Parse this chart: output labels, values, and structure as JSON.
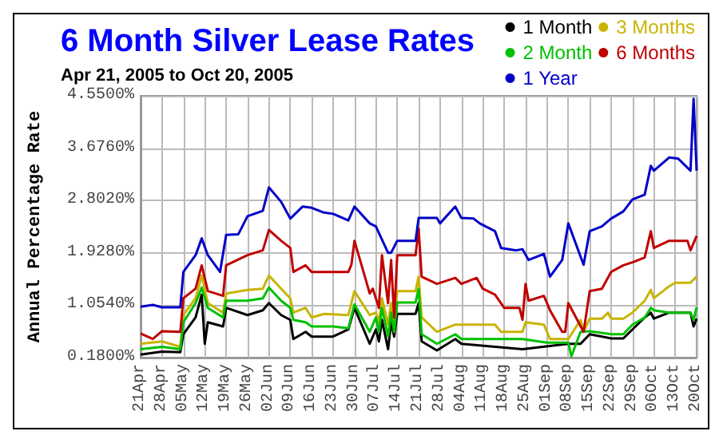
{
  "chart_data": {
    "type": "line",
    "title": "6 Month Silver Lease Rates",
    "subtitle": "Apr 21, 2005 to Oct 20, 2005",
    "ylabel": "Annual Percentage Rate",
    "xlim": [
      "2005-04-21",
      "2005-10-20"
    ],
    "ylim": [
      0.18,
      4.55
    ],
    "yticks": [
      {
        "value": 0.18,
        "label": "0.1800%"
      },
      {
        "value": 1.054,
        "label": "1.0540%"
      },
      {
        "value": 1.928,
        "label": "1.9280%"
      },
      {
        "value": 2.802,
        "label": "2.8020%"
      },
      {
        "value": 3.676,
        "label": "3.6760%"
      },
      {
        "value": 4.55,
        "label": "4.5500%"
      }
    ],
    "xticks": [
      {
        "value": "2005-04-21",
        "label": "21Apr"
      },
      {
        "value": "2005-04-28",
        "label": "28Apr"
      },
      {
        "value": "2005-05-05",
        "label": "05May"
      },
      {
        "value": "2005-05-12",
        "label": "12May"
      },
      {
        "value": "2005-05-19",
        "label": "19May"
      },
      {
        "value": "2005-05-26",
        "label": "26May"
      },
      {
        "value": "2005-06-02",
        "label": "02Jun"
      },
      {
        "value": "2005-06-09",
        "label": "09Jun"
      },
      {
        "value": "2005-06-16",
        "label": "16Jun"
      },
      {
        "value": "2005-06-23",
        "label": "23Jun"
      },
      {
        "value": "2005-06-30",
        "label": "30Jun"
      },
      {
        "value": "2005-07-07",
        "label": "07Jul"
      },
      {
        "value": "2005-07-14",
        "label": "14Jul"
      },
      {
        "value": "2005-07-21",
        "label": "21Jul"
      },
      {
        "value": "2005-07-28",
        "label": "28Jul"
      },
      {
        "value": "2005-08-04",
        "label": "04Aug"
      },
      {
        "value": "2005-08-11",
        "label": "11Aug"
      },
      {
        "value": "2005-08-18",
        "label": "18Aug"
      },
      {
        "value": "2005-08-25",
        "label": "25Aug"
      },
      {
        "value": "2005-09-01",
        "label": "01Sep"
      },
      {
        "value": "2005-09-08",
        "label": "08Sep"
      },
      {
        "value": "2005-09-15",
        "label": "15Sep"
      },
      {
        "value": "2005-09-22",
        "label": "22Sep"
      },
      {
        "value": "2005-09-29",
        "label": "29Sep"
      },
      {
        "value": "2005-10-06",
        "label": "06Oct"
      },
      {
        "value": "2005-10-13",
        "label": "13Oct"
      },
      {
        "value": "2005-10-20",
        "label": "20Oct"
      }
    ],
    "grid": true,
    "legend": "top right",
    "marker": "none",
    "series": [
      {
        "name": "1 Month",
        "color": "#000000",
        "x": [
          "2005-04-21",
          "2005-04-28",
          "2005-05-04",
          "2005-05-05",
          "2005-05-09",
          "2005-05-11",
          "2005-05-12",
          "2005-05-13",
          "2005-05-18",
          "2005-05-19",
          "2005-05-26",
          "2005-05-31",
          "2005-06-02",
          "2005-06-06",
          "2005-06-09",
          "2005-06-10",
          "2005-06-14",
          "2005-06-16",
          "2005-06-23",
          "2005-06-28",
          "2005-06-30",
          "2005-07-05",
          "2005-07-07",
          "2005-07-08",
          "2005-07-09",
          "2005-07-11",
          "2005-07-12",
          "2005-07-13",
          "2005-07-14",
          "2005-07-20",
          "2005-07-21",
          "2005-07-22",
          "2005-07-27",
          "2005-08-02",
          "2005-08-04",
          "2005-08-24",
          "2005-09-08",
          "2005-09-12",
          "2005-09-15",
          "2005-09-22",
          "2005-09-26",
          "2005-09-29",
          "2005-10-03",
          "2005-10-05",
          "2005-10-06",
          "2005-10-11",
          "2005-10-18",
          "2005-10-19",
          "2005-10-20"
        ],
        "values": [
          0.23,
          0.28,
          0.27,
          0.57,
          0.85,
          1.23,
          0.41,
          0.77,
          0.7,
          1.01,
          0.89,
          0.97,
          1.09,
          0.89,
          0.81,
          0.49,
          0.61,
          0.53,
          0.53,
          0.65,
          1.01,
          0.41,
          0.65,
          0.45,
          0.81,
          0.32,
          0.77,
          0.53,
          0.91,
          0.91,
          1.09,
          0.45,
          0.3,
          0.49,
          0.41,
          0.32,
          0.41,
          0.41,
          0.57,
          0.5,
          0.5,
          0.65,
          0.85,
          0.93,
          0.83,
          0.93,
          0.93,
          0.7,
          0.83
        ]
      },
      {
        "name": "3 Months",
        "color": "#c8b400",
        "x": [
          "2005-04-21",
          "2005-04-28",
          "2005-05-04",
          "2005-05-05",
          "2005-05-09",
          "2005-05-11",
          "2005-05-13",
          "2005-05-18",
          "2005-05-19",
          "2005-05-26",
          "2005-05-31",
          "2005-06-02",
          "2005-06-06",
          "2005-06-09",
          "2005-06-10",
          "2005-06-14",
          "2005-06-16",
          "2005-06-20",
          "2005-06-28",
          "2005-06-30",
          "2005-07-05",
          "2005-07-07",
          "2005-07-08",
          "2005-07-09",
          "2005-07-11",
          "2005-07-12",
          "2005-07-13",
          "2005-07-14",
          "2005-07-20",
          "2005-07-21",
          "2005-07-22",
          "2005-07-27",
          "2005-08-02",
          "2005-08-15",
          "2005-08-17",
          "2005-08-24",
          "2005-08-25",
          "2005-08-31",
          "2005-09-02",
          "2005-09-08",
          "2005-09-12",
          "2005-09-13",
          "2005-09-15",
          "2005-09-19",
          "2005-09-21",
          "2005-09-22",
          "2005-09-26",
          "2005-09-29",
          "2005-10-03",
          "2005-10-05",
          "2005-10-06",
          "2005-10-11",
          "2005-10-13",
          "2005-10-18",
          "2005-10-20"
        ],
        "values": [
          0.41,
          0.45,
          0.36,
          0.89,
          1.17,
          1.55,
          1.09,
          0.93,
          1.25,
          1.31,
          1.33,
          1.55,
          1.33,
          1.17,
          0.93,
          1.01,
          0.85,
          0.91,
          0.89,
          1.29,
          0.89,
          0.93,
          0.77,
          1.17,
          0.73,
          1.09,
          0.77,
          1.29,
          1.29,
          1.53,
          0.85,
          0.61,
          0.73,
          0.73,
          0.61,
          0.61,
          0.77,
          0.73,
          0.49,
          0.49,
          0.81,
          0.61,
          0.83,
          0.83,
          0.93,
          0.83,
          0.83,
          0.93,
          1.13,
          1.31,
          1.17,
          1.37,
          1.43,
          1.43,
          1.53
        ]
      },
      {
        "name": "2 Month",
        "color": "#00c000",
        "x": [
          "2005-04-21",
          "2005-04-28",
          "2005-05-04",
          "2005-05-05",
          "2005-05-09",
          "2005-05-11",
          "2005-05-13",
          "2005-05-18",
          "2005-05-19",
          "2005-05-26",
          "2005-05-31",
          "2005-06-02",
          "2005-06-06",
          "2005-06-09",
          "2005-06-10",
          "2005-06-14",
          "2005-06-16",
          "2005-06-23",
          "2005-06-28",
          "2005-06-30",
          "2005-07-05",
          "2005-07-07",
          "2005-07-08",
          "2005-07-09",
          "2005-07-11",
          "2005-07-12",
          "2005-07-13",
          "2005-07-14",
          "2005-07-20",
          "2005-07-21",
          "2005-07-22",
          "2005-07-27",
          "2005-08-02",
          "2005-08-04",
          "2005-08-24",
          "2005-09-01",
          "2005-09-08",
          "2005-09-09",
          "2005-09-12",
          "2005-09-15",
          "2005-09-22",
          "2005-09-26",
          "2005-09-29",
          "2005-10-03",
          "2005-10-05",
          "2005-10-06",
          "2005-10-11",
          "2005-10-18",
          "2005-10-19",
          "2005-10-20"
        ],
        "values": [
          0.32,
          0.36,
          0.32,
          0.77,
          1.09,
          1.35,
          1.01,
          0.85,
          1.13,
          1.13,
          1.17,
          1.35,
          1.13,
          1.01,
          0.81,
          0.77,
          0.7,
          0.7,
          0.67,
          1.07,
          0.61,
          0.85,
          0.61,
          1.01,
          0.53,
          0.93,
          0.61,
          1.1,
          1.1,
          1.33,
          0.57,
          0.41,
          0.57,
          0.49,
          0.49,
          0.43,
          0.43,
          0.2,
          0.61,
          0.62,
          0.57,
          0.57,
          0.73,
          0.85,
          1.01,
          0.97,
          0.93,
          0.93,
          0.81,
          1.02
        ]
      },
      {
        "name": "6 Months",
        "color": "#c00000",
        "x": [
          "2005-04-21",
          "2005-04-25",
          "2005-04-28",
          "2005-05-04",
          "2005-05-05",
          "2005-05-09",
          "2005-05-11",
          "2005-05-13",
          "2005-05-18",
          "2005-05-19",
          "2005-05-26",
          "2005-05-31",
          "2005-06-02",
          "2005-06-06",
          "2005-06-09",
          "2005-06-10",
          "2005-06-14",
          "2005-06-16",
          "2005-06-28",
          "2005-06-29",
          "2005-06-30",
          "2005-07-05",
          "2005-07-06",
          "2005-07-08",
          "2005-07-09",
          "2005-07-11",
          "2005-07-12",
          "2005-07-13",
          "2005-07-14",
          "2005-07-20",
          "2005-07-21",
          "2005-07-22",
          "2005-07-27",
          "2005-08-02",
          "2005-08-04",
          "2005-08-09",
          "2005-08-11",
          "2005-08-15",
          "2005-08-18",
          "2005-08-23",
          "2005-08-24",
          "2005-08-25",
          "2005-08-26",
          "2005-08-31",
          "2005-09-02",
          "2005-09-06",
          "2005-09-07",
          "2005-09-08",
          "2005-09-13",
          "2005-09-15",
          "2005-09-19",
          "2005-09-22",
          "2005-09-26",
          "2005-09-29",
          "2005-10-03",
          "2005-10-05",
          "2005-10-06",
          "2005-10-11",
          "2005-10-17",
          "2005-10-18",
          "2005-10-20"
        ],
        "values": [
          0.58,
          0.49,
          0.62,
          0.61,
          1.17,
          1.33,
          1.72,
          1.29,
          1.21,
          1.72,
          1.89,
          1.97,
          2.31,
          2.13,
          2.01,
          1.61,
          1.72,
          1.61,
          1.61,
          1.73,
          2.13,
          1.25,
          1.33,
          1.01,
          1.89,
          1.09,
          1.81,
          0.85,
          1.89,
          1.89,
          2.33,
          1.53,
          1.41,
          1.51,
          1.41,
          1.51,
          1.33,
          1.23,
          1.01,
          1.01,
          0.81,
          1.41,
          1.13,
          1.21,
          0.97,
          0.61,
          0.61,
          1.09,
          0.61,
          1.29,
          1.33,
          1.61,
          1.72,
          1.77,
          1.85,
          2.29,
          2.01,
          2.13,
          2.13,
          1.97,
          2.21
        ]
      },
      {
        "name": "1 Year",
        "color": "#0000c8",
        "x": [
          "2005-04-21",
          "2005-04-25",
          "2005-04-28",
          "2005-05-04",
          "2005-05-05",
          "2005-05-09",
          "2005-05-11",
          "2005-05-13",
          "2005-05-17",
          "2005-05-19",
          "2005-05-23",
          "2005-05-26",
          "2005-05-31",
          "2005-06-02",
          "2005-06-06",
          "2005-06-09",
          "2005-06-13",
          "2005-06-16",
          "2005-06-20",
          "2005-06-23",
          "2005-06-28",
          "2005-06-30",
          "2005-07-05",
          "2005-07-07",
          "2005-07-11",
          "2005-07-12",
          "2005-07-14",
          "2005-07-20",
          "2005-07-21",
          "2005-07-27",
          "2005-07-28",
          "2005-08-02",
          "2005-08-04",
          "2005-08-08",
          "2005-08-10",
          "2005-08-15",
          "2005-08-17",
          "2005-08-22",
          "2005-08-24",
          "2005-08-26",
          "2005-08-31",
          "2005-09-02",
          "2005-09-06",
          "2005-09-08",
          "2005-09-13",
          "2005-09-15",
          "2005-09-19",
          "2005-09-22",
          "2005-09-26",
          "2005-09-29",
          "2005-10-03",
          "2005-10-05",
          "2005-10-06",
          "2005-10-11",
          "2005-10-14",
          "2005-10-18",
          "2005-10-19",
          "2005-10-20"
        ],
        "values": [
          1.03,
          1.06,
          1.02,
          1.02,
          1.61,
          1.89,
          2.17,
          1.89,
          1.61,
          2.23,
          2.24,
          2.54,
          2.63,
          3.02,
          2.78,
          2.5,
          2.7,
          2.68,
          2.6,
          2.58,
          2.47,
          2.7,
          2.42,
          2.37,
          1.93,
          1.93,
          2.13,
          2.13,
          2.51,
          2.51,
          2.42,
          2.7,
          2.51,
          2.5,
          2.42,
          2.29,
          2.01,
          1.97,
          1.99,
          1.81,
          1.91,
          1.53,
          1.81,
          2.42,
          1.73,
          2.29,
          2.37,
          2.5,
          2.62,
          2.82,
          2.9,
          3.38,
          3.3,
          3.52,
          3.5,
          3.3,
          4.5,
          3.3
        ]
      }
    ]
  }
}
